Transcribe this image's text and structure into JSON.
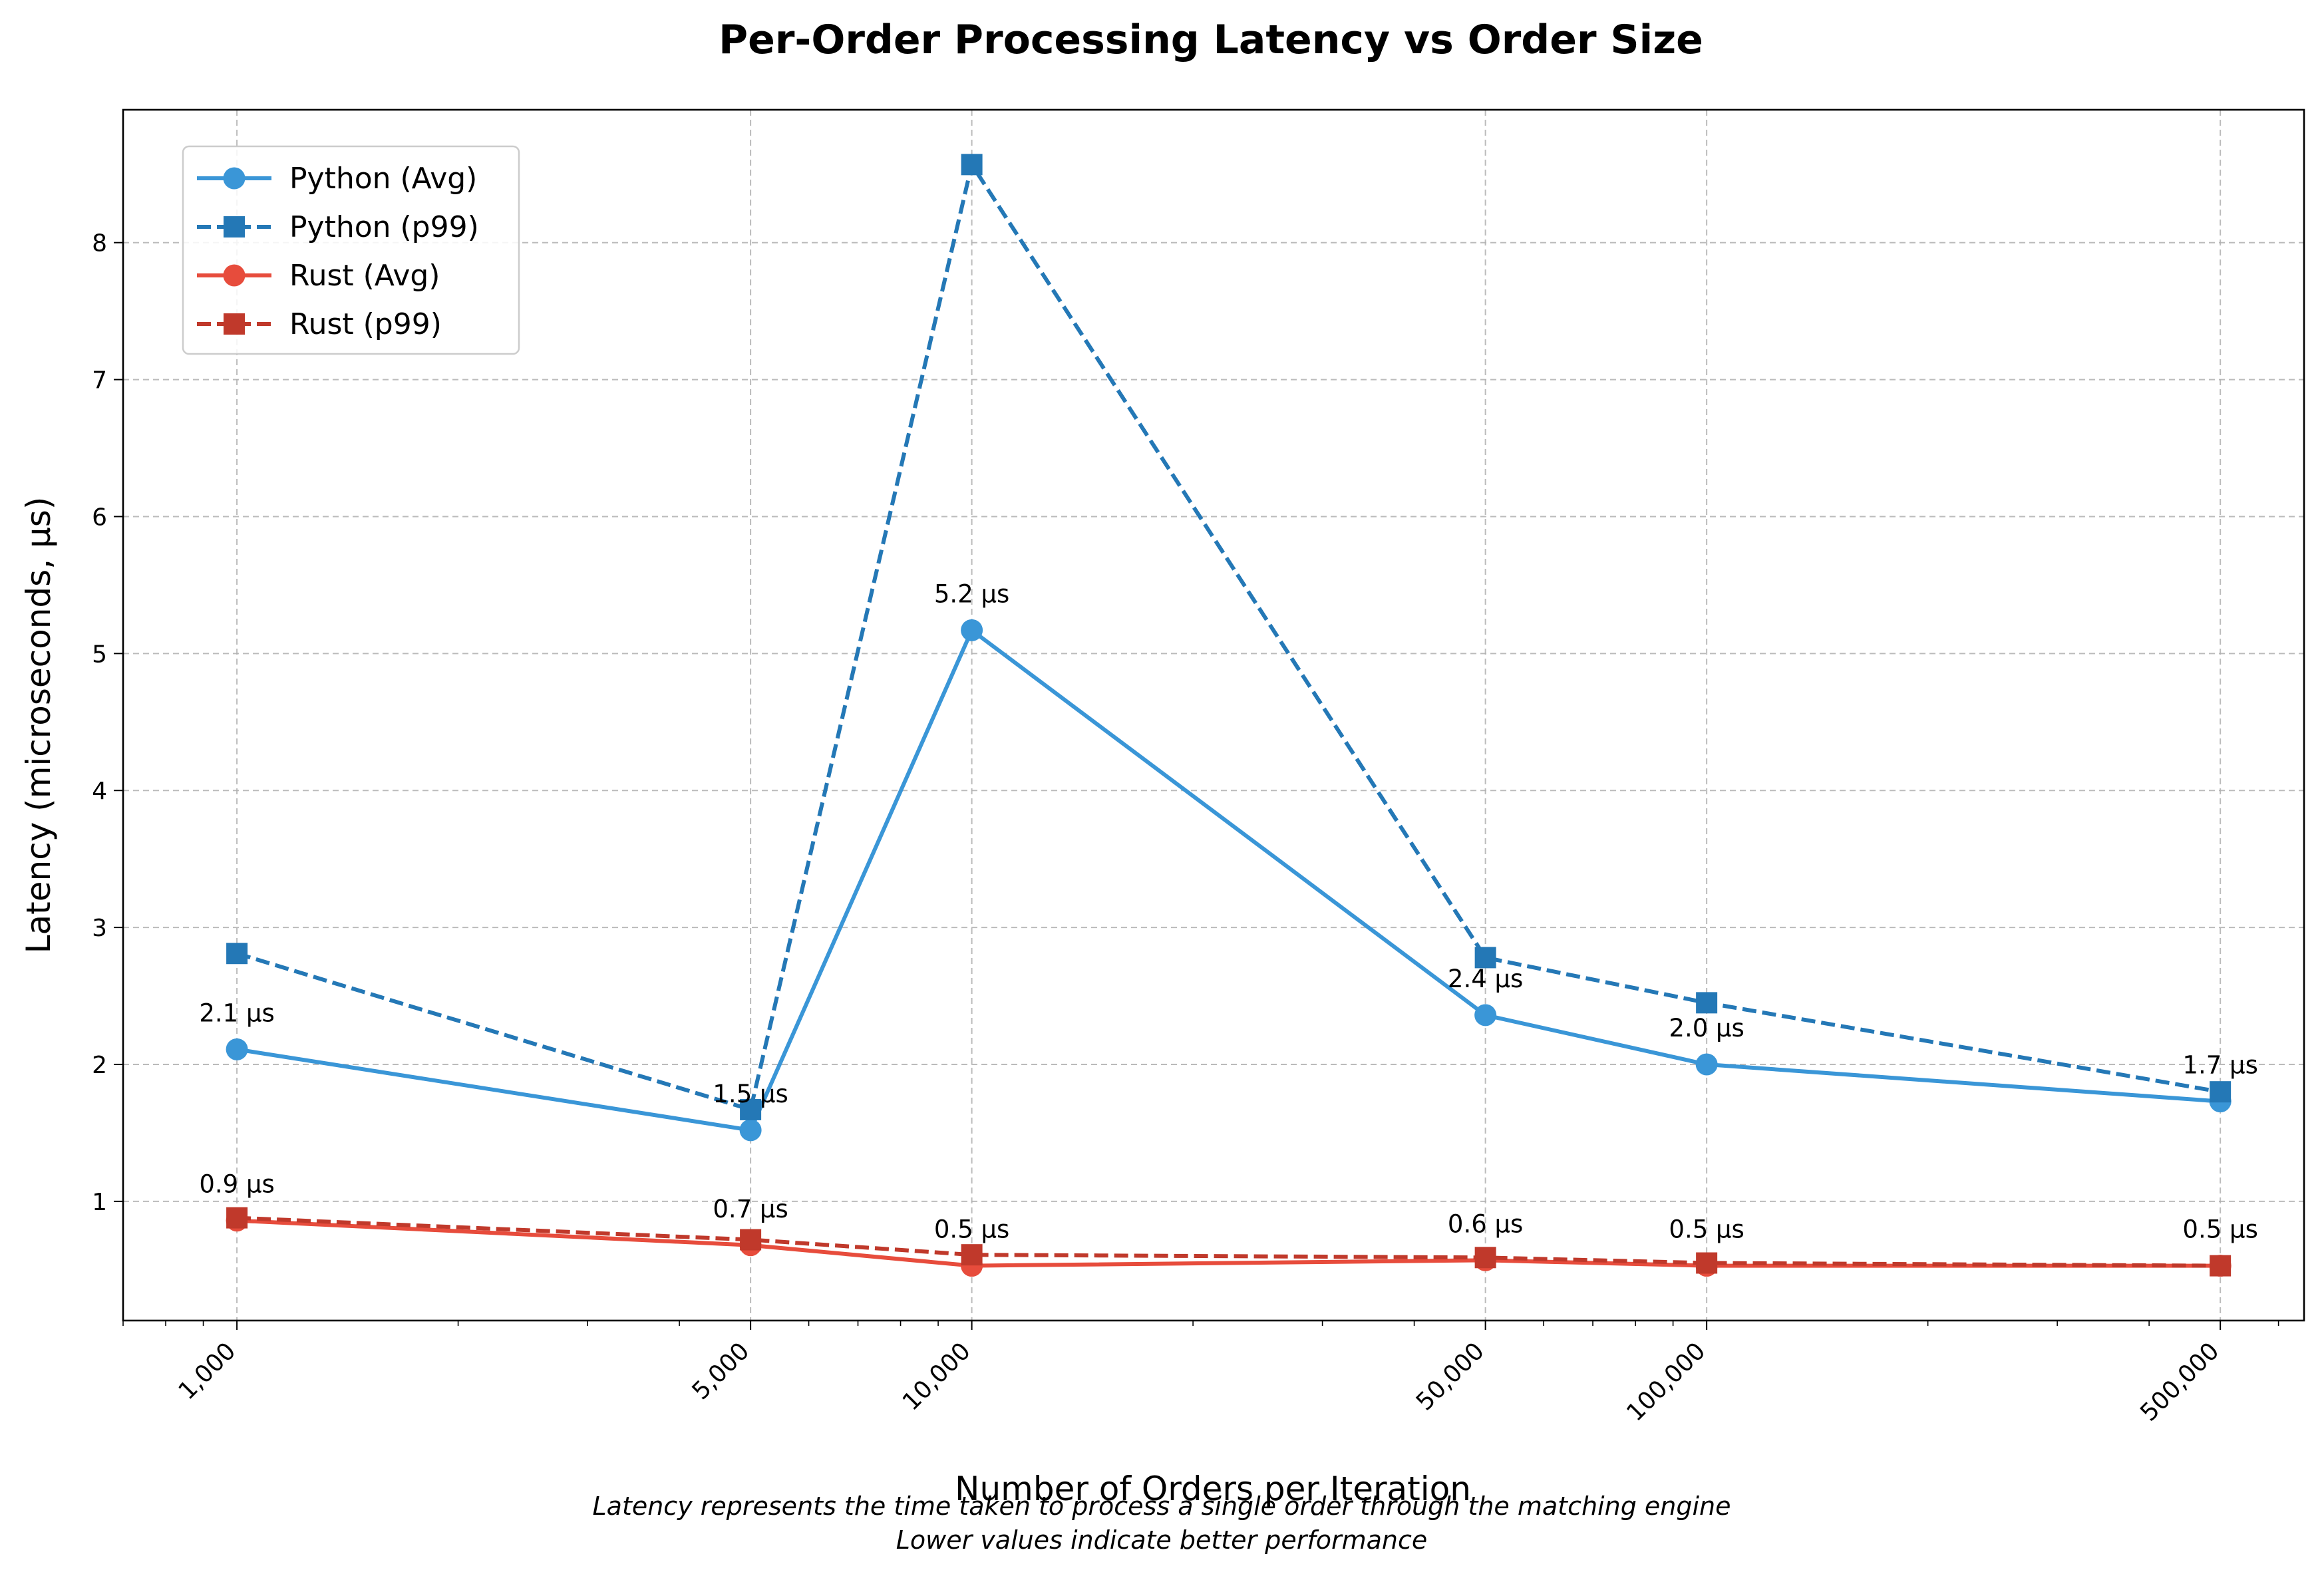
{
  "chart_data": {
    "type": "line",
    "title": "Per-Order Processing Latency vs Order Size",
    "xlabel": "Number of Orders per Iteration",
    "ylabel": "Latency (microseconds, μs)",
    "x_scale": "log",
    "x": [
      1000,
      5000,
      10000,
      50000,
      100000,
      500000
    ],
    "x_tick_labels": [
      "1,000",
      "5,000",
      "10,000",
      "50,000",
      "100,000",
      "500,000"
    ],
    "xlim": [
      700,
      650000
    ],
    "ylim": [
      0.13,
      8.97
    ],
    "y_ticks": [
      1,
      2,
      3,
      4,
      5,
      6,
      7,
      8
    ],
    "grid": true,
    "legend_position": "upper-left",
    "series": [
      {
        "name": "Python (Avg)",
        "values": [
          2.11,
          1.52,
          5.17,
          2.36,
          2.0,
          1.73
        ],
        "color": "#3a96d7",
        "line_style": "solid",
        "marker": "circle",
        "value_labels": [
          "2.1 μs",
          "1.5 μs",
          "5.2 μs",
          "2.4 μs",
          "2.0 μs",
          "1.7 μs"
        ]
      },
      {
        "name": "Python (p99)",
        "values": [
          2.81,
          1.67,
          8.57,
          2.78,
          2.45,
          1.8
        ],
        "color": "#2478b6",
        "line_style": "dashed",
        "marker": "square"
      },
      {
        "name": "Rust (Avg)",
        "values": [
          0.86,
          0.68,
          0.53,
          0.57,
          0.53,
          0.53
        ],
        "color": "#e74c3c",
        "line_style": "solid",
        "marker": "circle",
        "value_labels": [
          "0.9 μs",
          "0.7 μs",
          "0.5 μs",
          "0.6 μs",
          "0.5 μs",
          "0.5 μs"
        ]
      },
      {
        "name": "Rust (p99)",
        "values": [
          0.88,
          0.72,
          0.61,
          0.59,
          0.55,
          0.53
        ],
        "color": "#c0392b",
        "line_style": "dashed",
        "marker": "square"
      }
    ]
  },
  "caption": {
    "line1": "Latency represents the time taken to process a single order through the matching engine",
    "line2": "Lower values indicate better performance"
  }
}
